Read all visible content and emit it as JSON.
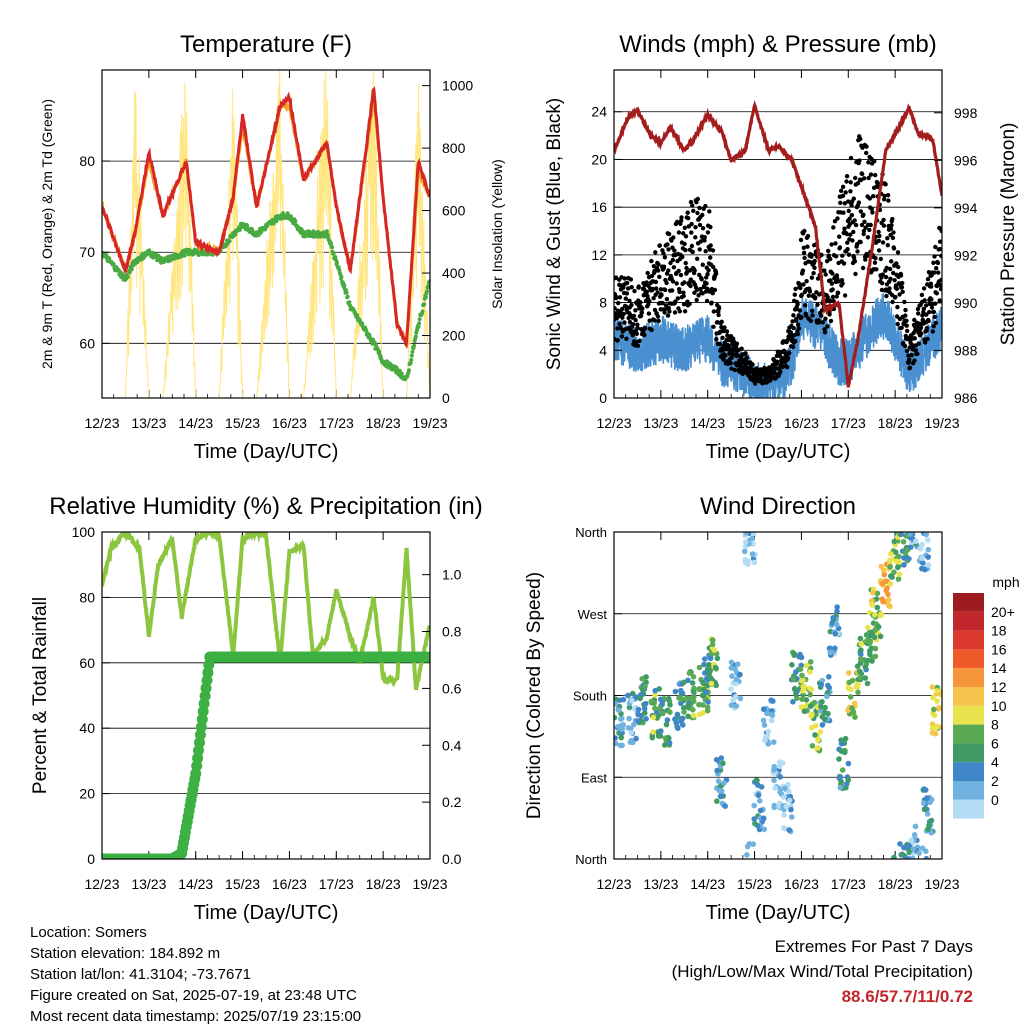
{
  "x_tick_labels": [
    "12/23",
    "13/23",
    "14/23",
    "15/23",
    "16/23",
    "17/23",
    "18/23",
    "19/23"
  ],
  "charts": {
    "temperature": {
      "title": "Temperature (F)",
      "xlabel": "Time (Day/UTC)",
      "ylabel_left": "2m & 9m T (Red, Orange) & 2m Td (Green)",
      "ylabel_right": "Solar Insolation (Yellow)",
      "left_ticks": [
        "60",
        "70",
        "80"
      ],
      "right_ticks": [
        "0",
        "200",
        "400",
        "600",
        "800",
        "1000"
      ]
    },
    "winds": {
      "title": "Winds (mph) & Pressure (mb)",
      "xlabel": "Time (Day/UTC)",
      "ylabel_left": "Sonic Wind & Gust (Blue, Black)",
      "ylabel_right": "Station Pressure (Maroon)",
      "left_ticks": [
        "0",
        "4",
        "8",
        "12",
        "16",
        "20",
        "24"
      ],
      "right_ticks": [
        "986",
        "988",
        "990",
        "992",
        "994",
        "996",
        "998"
      ]
    },
    "humidity": {
      "title": "Relative Humidity (%) & Precipitation (in)",
      "xlabel": "Time (Day/UTC)",
      "ylabel_left": "Percent & Total Rainfall",
      "left_ticks": [
        "0",
        "20",
        "40",
        "60",
        "80",
        "100"
      ],
      "right_ticks": [
        "0.0",
        "0.2",
        "0.4",
        "0.6",
        "0.8",
        "1.0"
      ]
    },
    "direction": {
      "title": "Wind Direction",
      "xlabel": "Time (Day/UTC)",
      "ylabel_left": "Direction (Colored By Speed)",
      "left_ticks": [
        "North",
        "East",
        "South",
        "West",
        "North"
      ],
      "legend_title": "mph",
      "legend_labels": [
        "20+",
        "18",
        "16",
        "14",
        "12",
        "10",
        "8",
        "6",
        "4",
        "2",
        "0"
      ],
      "legend_colors": [
        "#9e1b1f",
        "#c1272d",
        "#dc3a2e",
        "#ef5a2a",
        "#f7953a",
        "#f6c44d",
        "#e9e44d",
        "#5aaa55",
        "#3f9a63",
        "#3f86c6",
        "#6fb2e0",
        "#b5dcf5"
      ]
    }
  },
  "chart_data": [
    {
      "type": "line",
      "title": "Temperature (F)",
      "xlabel": "Time (Day/UTC)",
      "ylabel": "2m & 9m T (Red, Orange) & 2m Td (Green)",
      "ylim": [
        54,
        90
      ],
      "y2label": "Solar Insolation (Yellow)",
      "y2lim": [
        0,
        1050
      ],
      "x_day_range": [
        12,
        19
      ],
      "x": [
        12.0,
        12.5,
        12.7,
        13.0,
        13.3,
        13.8,
        14.0,
        14.5,
        14.8,
        15.0,
        15.3,
        15.8,
        16.0,
        16.3,
        16.8,
        17.0,
        17.3,
        17.8,
        18.0,
        18.3,
        18.5,
        18.75,
        19.0
      ],
      "series": [
        {
          "name": "2m T",
          "color": "#d62728",
          "values": [
            75,
            68,
            72,
            81,
            74,
            80,
            71,
            70,
            76,
            85,
            75,
            86,
            87,
            78,
            82,
            75,
            68,
            88,
            76,
            62,
            60,
            80,
            76
          ]
        },
        {
          "name": "9m T",
          "color": "#f5a623",
          "values": [
            75,
            68,
            72,
            80,
            74,
            80,
            71,
            70,
            76,
            84,
            75,
            86,
            86,
            78,
            82,
            75,
            68,
            87,
            76,
            62,
            60,
            79,
            76
          ]
        },
        {
          "name": "2m Td",
          "color": "#4aaa42",
          "values": [
            70,
            67,
            69,
            70,
            69,
            70,
            70,
            70,
            72,
            73,
            72,
            74,
            74,
            72,
            72,
            69,
            64,
            60,
            58,
            57,
            56,
            62,
            67
          ]
        },
        {
          "name": "Solar Insolation",
          "color": "#ffe680",
          "axis": "right",
          "values": [
            0,
            0,
            980,
            0,
            0,
            1000,
            0,
            0,
            950,
            0,
            0,
            1000,
            0,
            0,
            1000,
            0,
            0,
            1030,
            0,
            0,
            0,
            1000,
            0
          ]
        }
      ]
    },
    {
      "type": "scatter",
      "title": "Winds (mph) & Pressure (mb)",
      "xlabel": "Time (Day/UTC)",
      "ylabel": "Sonic Wind & Gust (Blue, Black)",
      "ylim": [
        0,
        27.5
      ],
      "y2label": "Station Pressure (Maroon)",
      "y2lim": [
        986,
        999.8
      ],
      "x_day_range": [
        12,
        19
      ],
      "x": [
        12.0,
        12.3,
        12.5,
        12.8,
        13.0,
        13.2,
        13.5,
        13.7,
        14.0,
        14.3,
        14.5,
        14.8,
        15.0,
        15.3,
        15.5,
        15.8,
        16.0,
        16.3,
        16.5,
        16.8,
        17.0,
        17.2,
        17.5,
        17.8,
        18.0,
        18.3,
        18.5,
        18.8,
        19.0
      ],
      "series": [
        {
          "name": "Sonic Wind",
          "color": "#4a90d0",
          "values": [
            5,
            4.5,
            4,
            4.5,
            5,
            4.5,
            4,
            4.5,
            5,
            3,
            2.5,
            2,
            1,
            1,
            1.5,
            2.5,
            7,
            6,
            5,
            3,
            3,
            4,
            6,
            7,
            5,
            2,
            3,
            5,
            6
          ]
        },
        {
          "name": "Gust",
          "color": "#000000",
          "values": [
            8,
            8,
            7,
            9,
            10,
            11,
            12,
            13,
            13,
            5,
            4,
            3,
            2,
            2,
            3,
            5,
            11,
            10,
            9,
            13,
            15,
            17,
            16,
            14,
            11,
            4,
            6,
            9,
            12
          ]
        },
        {
          "name": "Station Pressure",
          "color": "#a31d1d",
          "axis": "right",
          "values": [
            996.4,
            997.8,
            998.1,
            997,
            996.7,
            997.4,
            996.4,
            996.9,
            997.9,
            997.2,
            996,
            996.4,
            998.3,
            996.4,
            996.6,
            996,
            994.9,
            993.2,
            989.7,
            990,
            986.5,
            988.4,
            992.2,
            996.4,
            997.1,
            998.2,
            997.1,
            996.9,
            994.5
          ]
        }
      ]
    },
    {
      "type": "line",
      "title": "Relative Humidity (%) & Precipitation (in)",
      "xlabel": "Time (Day/UTC)",
      "ylabel": "Percent & Total Rainfall",
      "ylim": [
        0,
        100
      ],
      "y2lim": [
        0,
        1.15
      ],
      "x_day_range": [
        12,
        19
      ],
      "x": [
        12.0,
        12.2,
        12.5,
        12.8,
        13.0,
        13.2,
        13.5,
        13.7,
        14.0,
        14.3,
        14.5,
        14.8,
        15.0,
        15.3,
        15.5,
        15.8,
        16.0,
        16.3,
        16.5,
        16.8,
        17.0,
        17.3,
        17.5,
        17.8,
        18.0,
        18.3,
        18.5,
        18.7,
        19.0
      ],
      "series": [
        {
          "name": "Relative Humidity",
          "color": "#8cc63f",
          "values": [
            84,
            95,
            100,
            95,
            68,
            90,
            98,
            74,
            98,
            100,
            99,
            62,
            98,
            100,
            99,
            60,
            94,
            96,
            62,
            68,
            82,
            68,
            60,
            80,
            55,
            55,
            95,
            52,
            72
          ]
        },
        {
          "name": "Total Precipitation",
          "color": "#3cb043",
          "axis": "right",
          "values": [
            0,
            0,
            0,
            0,
            0,
            0,
            0,
            0.02,
            0.3,
            0.71,
            0.71,
            0.71,
            0.71,
            0.71,
            0.71,
            0.71,
            0.71,
            0.71,
            0.71,
            0.71,
            0.71,
            0.71,
            0.71,
            0.71,
            0.71,
            0.71,
            0.71,
            0.71,
            0.71
          ]
        }
      ]
    },
    {
      "type": "scatter",
      "title": "Wind Direction",
      "xlabel": "Time (Day/UTC)",
      "ylabel": "Direction (Colored By Speed)",
      "ylim": [
        0,
        360
      ],
      "y_ticks": [
        "North",
        "East",
        "South",
        "West",
        "North"
      ],
      "x_day_range": [
        12,
        19
      ],
      "x": [
        12.1,
        12.4,
        12.6,
        12.9,
        13.1,
        13.4,
        13.6,
        13.9,
        14.0,
        14.1,
        14.3,
        14.6,
        14.9,
        15.1,
        15.3,
        15.5,
        15.7,
        15.9,
        16.1,
        16.3,
        16.5,
        16.7,
        16.9,
        17.1,
        17.3,
        17.5,
        17.6,
        17.8,
        18.0,
        18.2,
        18.4,
        18.6,
        18.7,
        18.9
      ],
      "series": [
        {
          "name": "Direction",
          "values": [
            150,
            155,
            175,
            160,
            150,
            170,
            180,
            185,
            200,
            215,
            85,
            190,
            350,
            60,
            150,
            80,
            55,
            200,
            190,
            145,
            175,
            250,
            105,
            180,
            220,
            245,
            270,
            305,
            335,
            350,
            10,
            345,
            50,
            165
          ],
          "speeds": [
            4,
            3,
            6,
            7,
            6,
            5,
            7,
            8,
            5,
            8,
            4,
            2,
            1,
            3,
            2,
            1,
            2,
            6,
            8,
            8,
            4,
            3,
            5,
            10,
            7,
            8,
            9,
            12,
            8,
            6,
            3,
            2,
            4,
            10
          ]
        }
      ]
    }
  ],
  "footer": {
    "location": "Location: Somers",
    "elevation": "Station elevation: 184.892 m",
    "latlon": "Station lat/lon: 41.3104; -73.7671",
    "created": "Figure created on Sat, 2025-07-19, at 23:48 UTC",
    "recent": "Most recent data timestamp: 2025/07/19 23:15:00",
    "extremes_title": "Extremes For Past 7 Days",
    "extremes_subtitle": "(High/Low/Max Wind/Total Precipitation)",
    "extremes_values": "88.6/57.7/11/0.72"
  }
}
